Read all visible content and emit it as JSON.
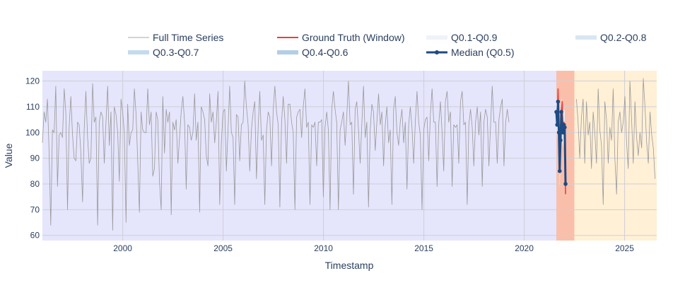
{
  "chart_data": {
    "type": "line",
    "title": "",
    "xlabel": "Timestamp",
    "ylabel": "Value",
    "xlim": [
      1996.0,
      2026.6
    ],
    "ylim": [
      58,
      124
    ],
    "x_ticks": [
      2000,
      2005,
      2010,
      2015,
      2020,
      2025
    ],
    "y_ticks": [
      60,
      70,
      80,
      90,
      100,
      110,
      120
    ],
    "grid": true,
    "legend_placement": "top",
    "regions": [
      {
        "name": "history",
        "from": 1996.0,
        "to": 2021.6,
        "color": "#e5e5fc"
      },
      {
        "name": "window",
        "from": 2021.6,
        "to": 2022.5,
        "color": "#f9bfaa"
      },
      {
        "name": "future",
        "from": 2022.5,
        "to": 2026.6,
        "color": "#fff0d6"
      }
    ],
    "legend": [
      {
        "label": "Full Time Series",
        "color": "#aaaaaa",
        "style": "thin-line"
      },
      {
        "label": "Ground Truth (Window)",
        "color": "#ef3b3b",
        "style": "line"
      },
      {
        "label": "Q0.1-Q0.9",
        "color": "#eef3f8",
        "style": "band"
      },
      {
        "label": "Q0.2-Q0.8",
        "color": "#d8e6f2",
        "style": "band"
      },
      {
        "label": "Q0.3-Q0.7",
        "color": "#c4dbef",
        "style": "band"
      },
      {
        "label": "Q0.4-Q0.6",
        "color": "#b4cee6",
        "style": "band"
      },
      {
        "label": "Median (Q0.5)",
        "color": "#1f4a82",
        "style": "line-marker"
      }
    ],
    "series": [
      {
        "name": "Full Time Series",
        "color": "#999999",
        "start": 1996.0,
        "step": 0.0833,
        "values": [
          96,
          108,
          104,
          113,
          92,
          64,
          101,
          100,
          118,
          79,
          99,
          100,
          98,
          117,
          108,
          70,
          102,
          114,
          99,
          90,
          89,
          104,
          103,
          92,
          73,
          101,
          116,
          98,
          88,
          90,
          119,
          104,
          106,
          64,
          104,
          108,
          106,
          88,
          104,
          118,
          95,
          108,
          62,
          110,
          107,
          100,
          81,
          113,
          108,
          100,
          65,
          111,
          95,
          100,
          101,
          117,
          107,
          89,
          69,
          108,
          101,
          100,
          100,
          117,
          103,
          108,
          83,
          86,
          108,
          105,
          81,
          70,
          114,
          92,
          109,
          104,
          108,
          68,
          104,
          101,
          105,
          88,
          98,
          108,
          114,
          104,
          78,
          103,
          102,
          97,
          100,
          115,
          97,
          104,
          69,
          110,
          108,
          105,
          91,
          87,
          115,
          104,
          108,
          96,
          104,
          116,
          72,
          96,
          108,
          109,
          85,
          101,
          118,
          100,
          98,
          72,
          107,
          106,
          89,
          103,
          104,
          120,
          110,
          103,
          85,
          101,
          108,
          112,
          82,
          102,
          116,
          97,
          99,
          72,
          101,
          108,
          106,
          87,
          109,
          118,
          108,
          103,
          71,
          104,
          114,
          105,
          88,
          111,
          111,
          104,
          100,
          70,
          106,
          108,
          109,
          98,
          110,
          117,
          102,
          104,
          72,
          103,
          102,
          104,
          87,
          104,
          104,
          105,
          75,
          102,
          108,
          101,
          70,
          109,
          116,
          109,
          104,
          70,
          101,
          104,
          108,
          95,
          106,
          120,
          103,
          104,
          76,
          109,
          112,
          101,
          88,
          103,
          118,
          98,
          104,
          71,
          101,
          111,
          108,
          93,
          104,
          115,
          103,
          108,
          87,
          103,
          110,
          96,
          101,
          72,
          109,
          114,
          100,
          95,
          104,
          109,
          96,
          104,
          78,
          103,
          110,
          102,
          88,
          104,
          116,
          104,
          99,
          70,
          101,
          105,
          106,
          89,
          107,
          117,
          104,
          104,
          79,
          103,
          112,
          100,
          85,
          112,
          116,
          104,
          108,
          79,
          103,
          102,
          103,
          88,
          112,
          116,
          103,
          104,
          72,
          103,
          109,
          102,
          87,
          104,
          110,
          99,
          108,
          79,
          104,
          109,
          106,
          87,
          103,
          118,
          104,
          104,
          88,
          105,
          110,
          113,
          87,
          104,
          109,
          104
        ]
      },
      {
        "name": "Ground Truth (Window)",
        "color": "#ef3b3b",
        "start": 2021.6,
        "step": 0.0417,
        "values": [
          108,
          104,
          117,
          103,
          85,
          98,
          108,
          112,
          100,
          104,
          102,
          76
        ]
      },
      {
        "name": "Median (Q0.5)",
        "color": "#1f4a82",
        "start": 2021.6,
        "step": 0.0417,
        "values": [
          108,
          103,
          112,
          100,
          85,
          97,
          108,
          103,
          100,
          103,
          102,
          80
        ]
      },
      {
        "name": "Future Series",
        "color": "#999999",
        "start": 2022.6,
        "step": 0.0833,
        "values": [
          113,
          104,
          90,
          106,
          113,
          88,
          112,
          99,
          104,
          86,
          108,
          100,
          88,
          117,
          101,
          95,
          72,
          112,
          105,
          88,
          102,
          97,
          117,
          90,
          76,
          104,
          108,
          100,
          104,
          114,
          96,
          86,
          120,
          105,
          88,
          112,
          98,
          91,
          100,
          94,
          121,
          110,
          96,
          88,
          108,
          99,
          94,
          82
        ]
      }
    ],
    "quantile_bands": [
      {
        "name": "Q0.1-Q0.9",
        "color": "#eef3f8",
        "lower": [
          102,
          97,
          105,
          93,
          78,
          90,
          102,
          97,
          94,
          97,
          96,
          74
        ],
        "upper": [
          114,
          110,
          118,
          108,
          93,
          105,
          114,
          110,
          107,
          110,
          108,
          87
        ]
      },
      {
        "name": "Q0.2-Q0.8",
        "color": "#d8e6f2",
        "lower": [
          104,
          99,
          108,
          95,
          80,
          92,
          104,
          99,
          96,
          99,
          98,
          76
        ],
        "upper": [
          112,
          107,
          116,
          105,
          90,
          102,
          112,
          107,
          104,
          107,
          106,
          84
        ]
      },
      {
        "name": "Q0.3-Q0.7",
        "color": "#c4dbef",
        "lower": [
          105,
          101,
          110,
          97,
          82,
          94,
          105,
          101,
          97,
          101,
          99,
          77
        ],
        "upper": [
          111,
          106,
          114,
          103,
          88,
          100,
          111,
          105,
          103,
          105,
          104,
          83
        ]
      },
      {
        "name": "Q0.4-Q0.6",
        "color": "#b4cee6",
        "lower": [
          107,
          102,
          111,
          99,
          84,
          96,
          107,
          102,
          99,
          102,
          101,
          79
        ],
        "upper": [
          109,
          104,
          113,
          101,
          86,
          98,
          109,
          104,
          101,
          104,
          103,
          81
        ]
      }
    ]
  }
}
